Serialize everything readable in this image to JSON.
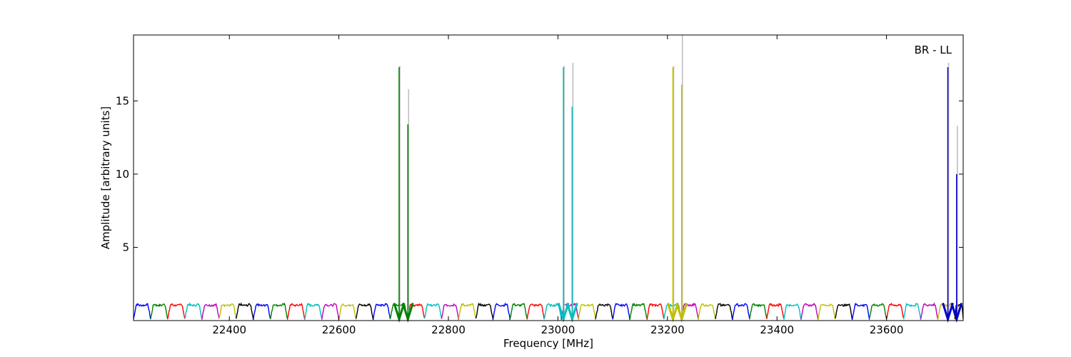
{
  "chart_data": {
    "type": "line",
    "title": "",
    "annotation": "BR - LL",
    "xlabel": "Frequency [MHz]",
    "ylabel": "Amplitude [arbitrary units]",
    "xlim": [
      22225,
      23740
    ],
    "ylim": [
      0,
      19.5
    ],
    "xticks": [
      22400,
      22600,
      22800,
      23000,
      23200,
      23400,
      23600
    ],
    "xtick_labels": [
      "22400",
      "22600",
      "22800",
      "23000",
      "23200",
      "23400",
      "23600"
    ],
    "yticks": [
      5,
      10,
      15
    ],
    "ytick_labels": [
      "5",
      "10",
      "15"
    ],
    "grid": false,
    "legend": "none",
    "baseline": {
      "description_of_values": "each spectral window is a bandpass-shaped segment of amplitude about 1.1, dipping to about 0.1 at both edges",
      "window_width_mhz": 31.25,
      "start_mhz": 22225,
      "end_mhz": 23740,
      "typical_amplitude": 1.1,
      "edge_amplitude": 0.1,
      "colors": [
        "#0000ff",
        "#008000",
        "#ff0000",
        "#00bfbf",
        "#bf00bf",
        "#bfbf00",
        "#000000"
      ]
    },
    "spikes": [
      {
        "x": 22710,
        "y": 17.3,
        "ghost_y": 17.4,
        "color": "#008000"
      },
      {
        "x": 22726,
        "y": 13.4,
        "ghost_y": 15.8,
        "color": "#008000"
      },
      {
        "x": 23010,
        "y": 17.3,
        "ghost_y": 17.4,
        "color": "#00bfbf"
      },
      {
        "x": 23026,
        "y": 14.6,
        "ghost_y": 17.6,
        "color": "#00bfbf"
      },
      {
        "x": 23210,
        "y": 17.3,
        "ghost_y": 17.4,
        "color": "#bfbf00"
      },
      {
        "x": 23226,
        "y": 16.1,
        "ghost_y": 19.5,
        "color": "#bfbf00"
      },
      {
        "x": 23712,
        "y": 17.3,
        "ghost_y": 17.6,
        "color": "#0000cc"
      },
      {
        "x": 23728,
        "y": 10.0,
        "ghost_y": 13.3,
        "color": "#0000cc"
      }
    ],
    "ghost_color": "#bfbfbf"
  }
}
